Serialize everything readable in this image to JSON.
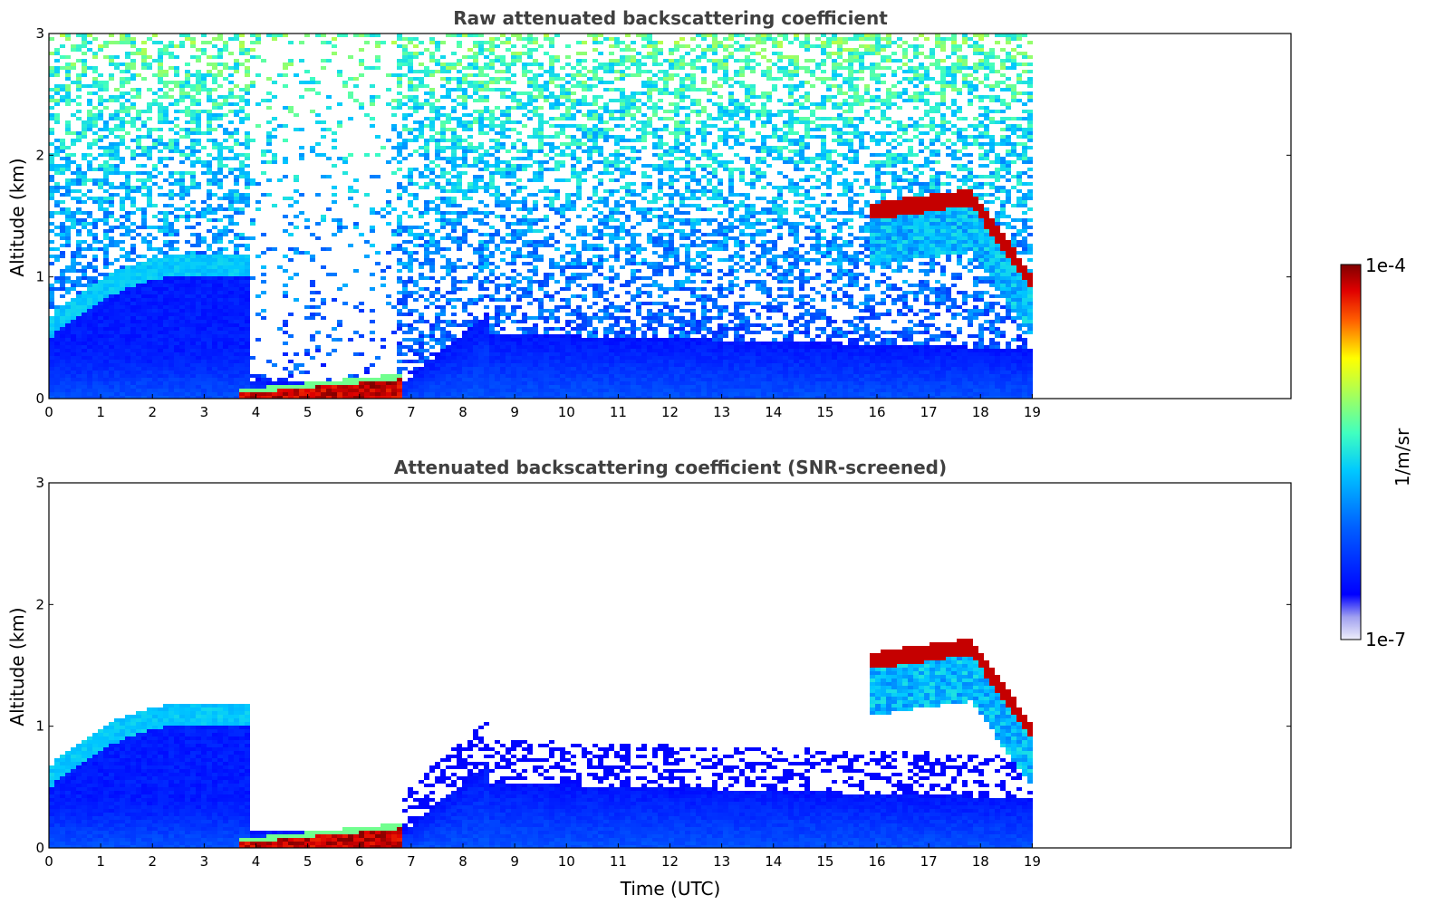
{
  "chart_data": [
    {
      "type": "heatmap",
      "title": "Raw attenuated backscattering coefficient",
      "xlabel": "",
      "ylabel": "Altitude (km)",
      "xlim": [
        0,
        24
      ],
      "ylim": [
        0,
        3
      ],
      "x_ticks": [
        "0",
        "1",
        "2",
        "3",
        "4",
        "5",
        "6",
        "7",
        "8",
        "9",
        "10",
        "11",
        "12",
        "13",
        "14",
        "15",
        "16",
        "17",
        "18",
        "19"
      ],
      "y_ticks": [
        "0",
        "1",
        "2",
        "3"
      ],
      "data_end_x": 19,
      "features": [
        {
          "name": "boundary layer",
          "x": [
            0,
            19
          ],
          "y_top": [
            0.5,
            0.4
          ]
        },
        {
          "name": "residual layer",
          "x": [
            0.5,
            3.8
          ],
          "y": [
            0.6,
            1.15
          ]
        },
        {
          "name": "fog/low cloud",
          "x": [
            3.6,
            6.7
          ],
          "y": [
            0.0,
            0.15
          ]
        },
        {
          "name": "cloud layer",
          "x": [
            15.8,
            19
          ],
          "y": [
            1.5,
            0.9
          ]
        }
      ]
    },
    {
      "type": "heatmap",
      "title": "Attenuated backscattering coefficient (SNR-screened)",
      "xlabel": "Time (UTC)",
      "ylabel": "Altitude (km)",
      "xlim": [
        0,
        24
      ],
      "ylim": [
        0,
        3
      ],
      "x_ticks": [
        "0",
        "1",
        "2",
        "3",
        "4",
        "5",
        "6",
        "7",
        "8",
        "9",
        "10",
        "11",
        "12",
        "13",
        "14",
        "15",
        "16",
        "17",
        "18",
        "19"
      ],
      "y_ticks": [
        "0",
        "1",
        "2",
        "3"
      ],
      "data_end_x": 19
    }
  ],
  "colorbar": {
    "label": "1/m/sr",
    "max_label": "1e-4",
    "min_label": "1e-7",
    "scale": "log",
    "range": [
      1e-07,
      0.0001
    ],
    "colormap": [
      "#e8e8f8",
      "#9090f0",
      "#0000ff",
      "#0050ff",
      "#00a0ff",
      "#00e0e0",
      "#80ff80",
      "#ffff00",
      "#ff8000",
      "#ff0000",
      "#800000"
    ]
  }
}
